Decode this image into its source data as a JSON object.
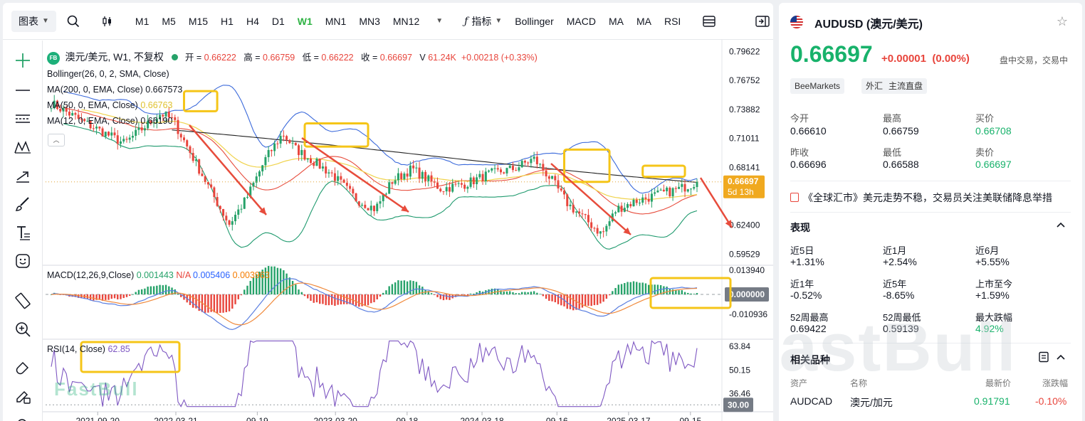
{
  "toolbar": {
    "chart_type": "图表",
    "timeframes": [
      "M1",
      "M5",
      "M15",
      "H1",
      "H4",
      "D1",
      "W1",
      "MN1",
      "MN3",
      "MN12"
    ],
    "active_timeframe": "W1",
    "indicators_label": "指标",
    "indicator_buttons": [
      "Bollinger",
      "MACD",
      "MA",
      "MA",
      "RSI"
    ]
  },
  "legend": {
    "badge": "FB",
    "symbol": "澳元/美元, W1, 不复权",
    "open_label": "开 =",
    "open": "0.66222",
    "high_label": "高 =",
    "high": "0.66759",
    "low_label": "低 =",
    "low": "0.66222",
    "close_label": "收 =",
    "close": "0.66697",
    "volume_label": "V",
    "volume": "61.24K",
    "change": "+0.00218 (+0.33%)",
    "bollinger": "Bollinger(26, 0, 2, SMA, Close)",
    "ma200": "MA(200, 0, EMA, Close)",
    "ma200_value": "0.667573",
    "ma50": "MA(50, 0, EMA, Close)",
    "ma50_value": "0.66763",
    "ma12": "MA(12, 0, EMA, Close)",
    "ma12_value": "0.66190",
    "macd": "MACD(12,26,9,Close)",
    "macd_v1": "0.001443",
    "macd_v2": "N/A",
    "macd_v3": "0.005406",
    "macd_v4": "0.003963",
    "rsi": "RSI(14, Close)",
    "rsi_value": "62.85"
  },
  "price_axis": [
    "0.79622",
    "0.76752",
    "0.73882",
    "0.71011",
    "0.68141",
    "0.62400",
    "0.59529"
  ],
  "price_tag": "0.66697",
  "price_tag_time": "5d 13h",
  "macd_axis": [
    "0.013940",
    "-0.010936"
  ],
  "macd_tag": "0.000000",
  "rsi_axis": [
    "63.84",
    "50.15",
    "36.46"
  ],
  "rsi_tag": "30.00",
  "time_axis": [
    "2021-09-20",
    "2022-03-21",
    "09-19",
    "2023-03-20",
    "09-18",
    "2024-03-18",
    "09-16",
    "2025-03-17",
    "09-15"
  ],
  "watermark": "FastBull",
  "side": {
    "title": "AUDUSD (澳元/美元)",
    "price": "0.66697",
    "change": "+0.00001",
    "change_pct": "(0.00%)",
    "status": "盘中交易，交易中",
    "tags": [
      "BeeMarkets",
      "外汇",
      "主流直盘"
    ],
    "stats": [
      {
        "label": "今开",
        "value": "0.66610"
      },
      {
        "label": "最高",
        "value": "0.66759"
      },
      {
        "label": "买价",
        "value": "0.66708"
      },
      {
        "label": "昨收",
        "value": "0.66696"
      },
      {
        "label": "最低",
        "value": "0.66588"
      },
      {
        "label": "卖价",
        "value": "0.66697"
      }
    ],
    "news": "《全球汇市》美元走势不稳，交易员关注美联储降息举措",
    "performance_title": "表现",
    "performance": [
      {
        "label": "近5日",
        "value": "+1.31%"
      },
      {
        "label": "近1月",
        "value": "+2.54%"
      },
      {
        "label": "近6月",
        "value": "+5.55%"
      },
      {
        "label": "近1年",
        "value": "-0.52%"
      },
      {
        "label": "近5年",
        "value": "-8.65%"
      },
      {
        "label": "上市至今",
        "value": "+1.59%"
      },
      {
        "label": "52周最高",
        "value": "0.69422"
      },
      {
        "label": "52周最低",
        "value": "0.59139"
      },
      {
        "label": "最大跌幅",
        "value": "4.92%"
      }
    ],
    "related_title": "相关品种",
    "related_headers": [
      "资产",
      "名称",
      "最新价",
      "涨跌幅"
    ],
    "related": [
      {
        "asset": "AUDCAD",
        "name": "澳元/加元",
        "price": "0.91791",
        "change": "-0.10%"
      }
    ]
  },
  "colors": {
    "up": "#26a269",
    "down": "#e8453c",
    "accent": "#2fb344",
    "bb": "#3d6bdb",
    "bb_mid": "#e74c3c",
    "ma200": "#222222",
    "ma50": "#f0d34b",
    "highlight": "#f5c518",
    "arrow": "#e74c3c",
    "rsi": "#7e57c2"
  }
}
